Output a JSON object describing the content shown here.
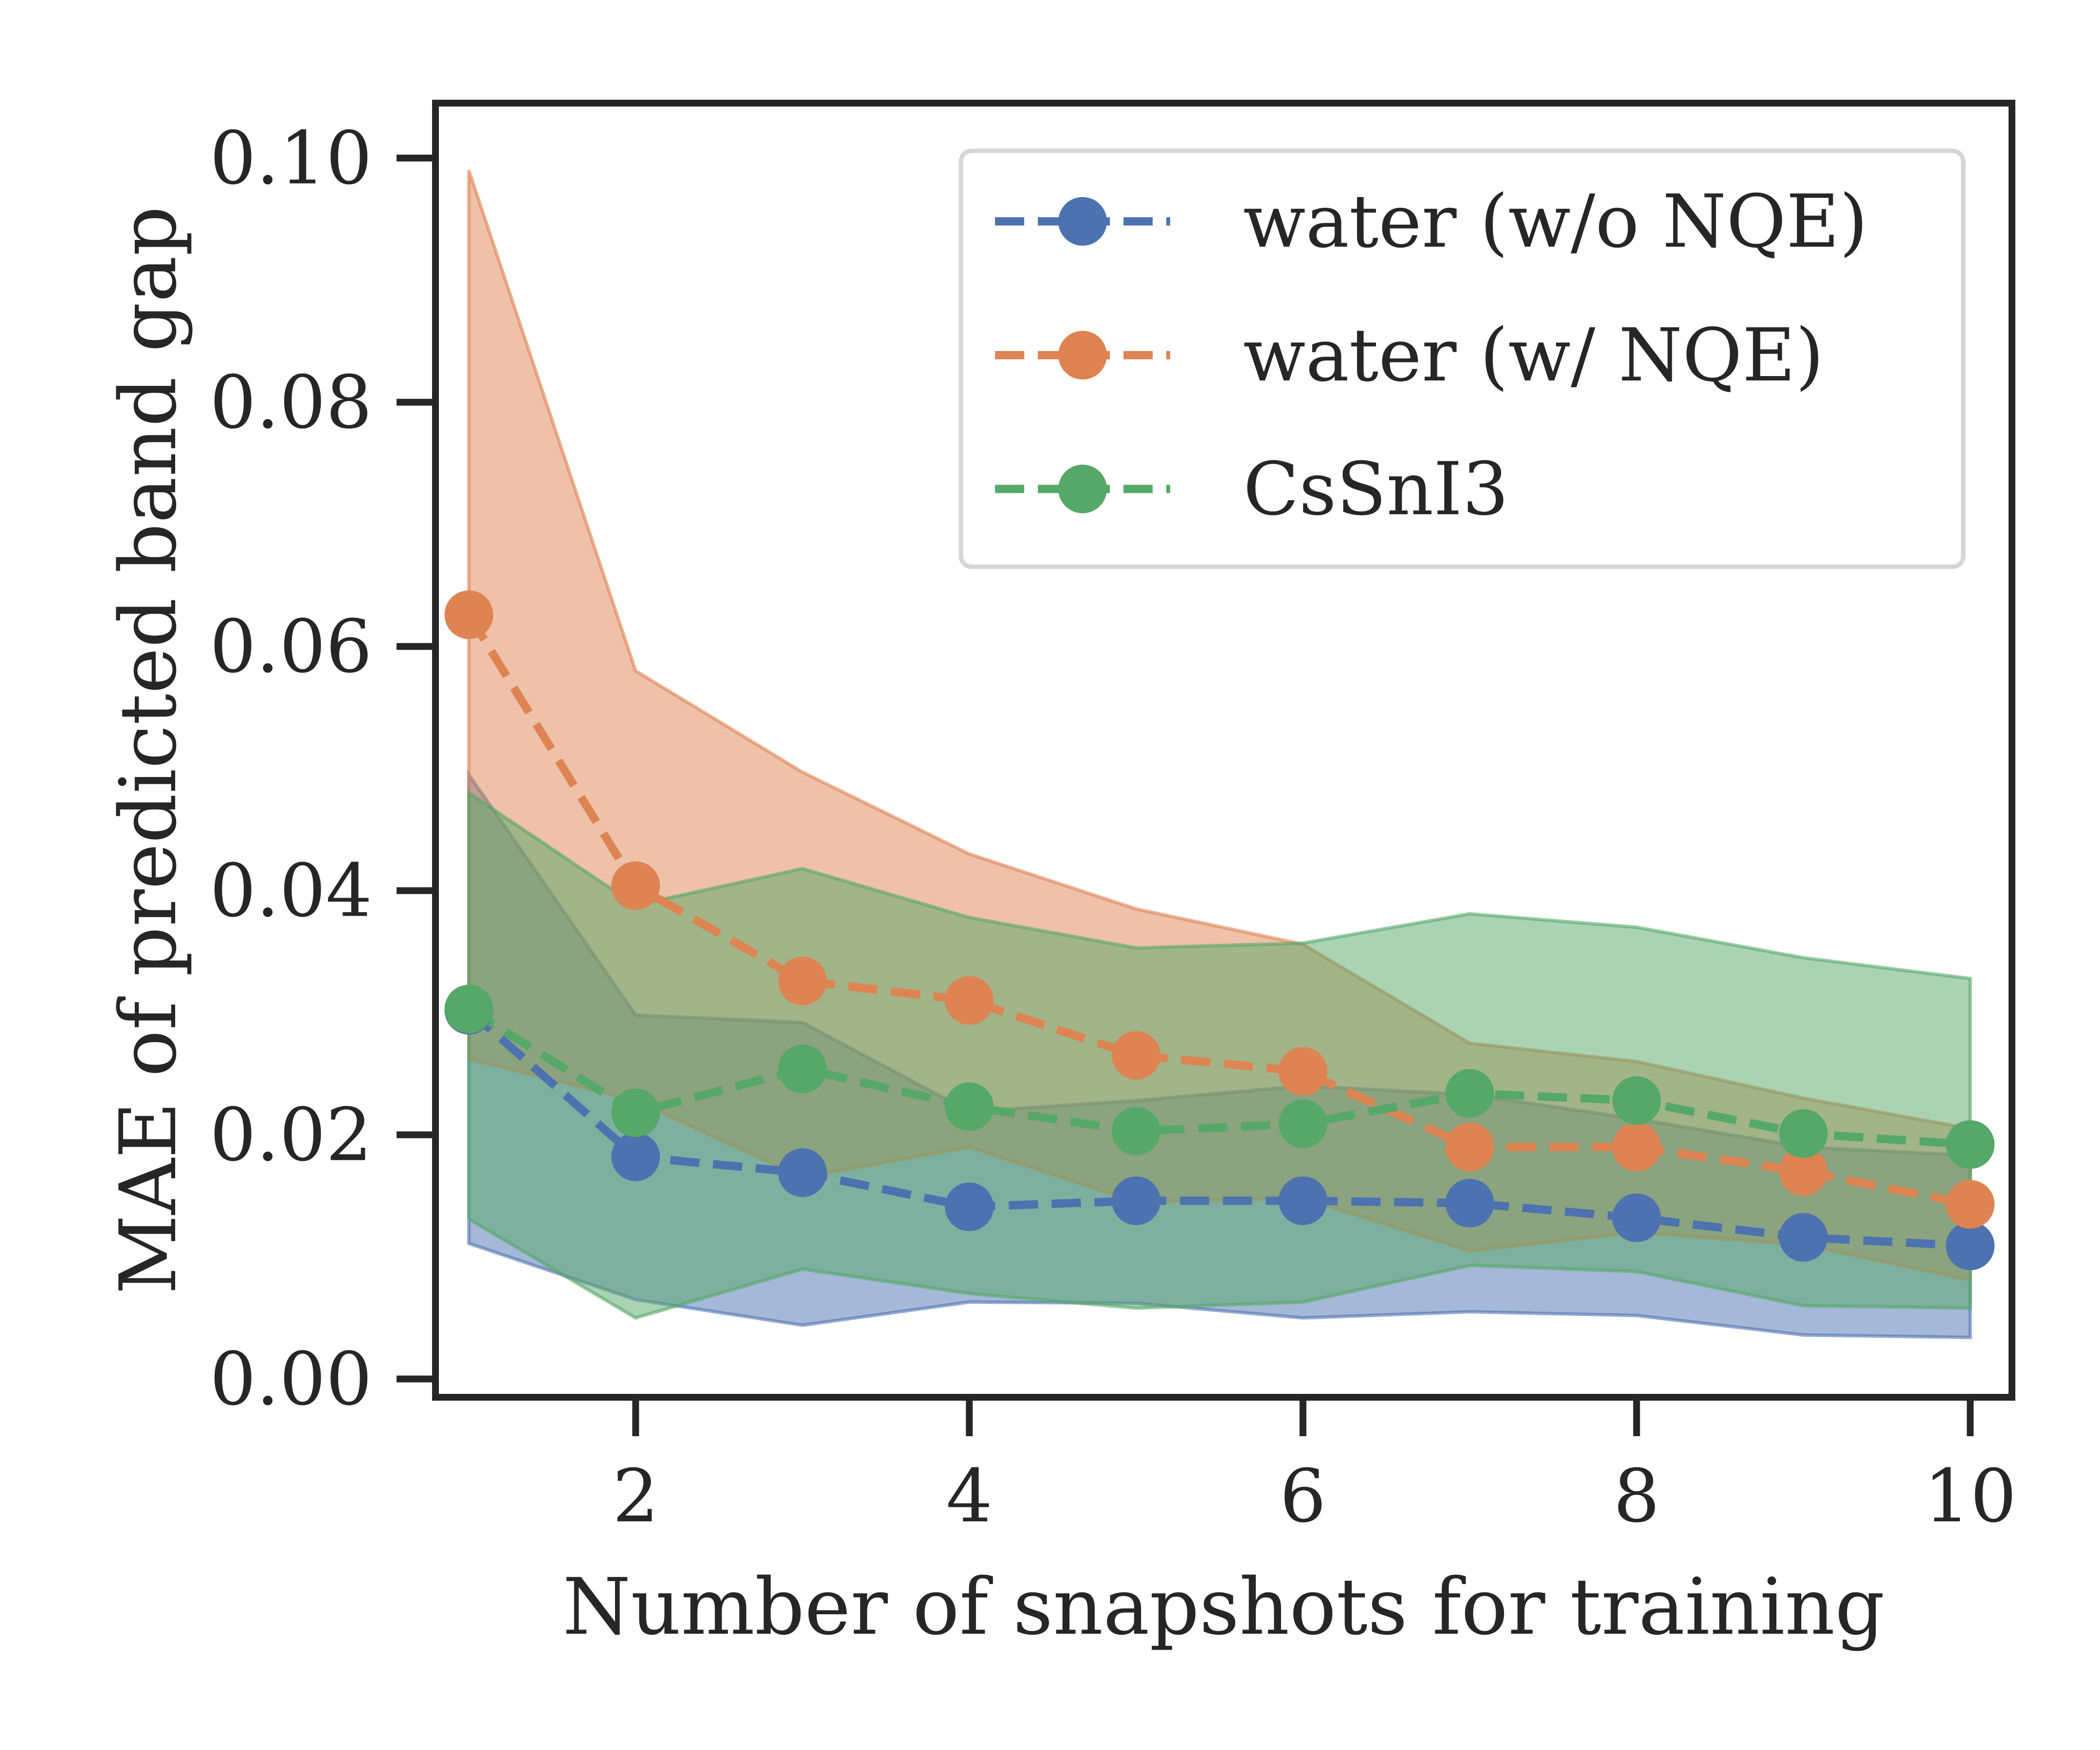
{
  "chart_data": {
    "type": "line",
    "title": "",
    "xlabel": "Number of snapshots for training",
    "ylabel": "MAE of predicted band gap",
    "xlim": [
      0.8,
      10.25
    ],
    "ylim": [
      -0.0015,
      0.1045
    ],
    "xticks": [
      2,
      4,
      6,
      8,
      10
    ],
    "xtick_labels": [
      "2",
      "4",
      "6",
      "8",
      "10"
    ],
    "yticks": [
      0.0,
      0.02,
      0.04,
      0.06,
      0.08,
      0.1
    ],
    "ytick_labels": [
      "0.00",
      "0.02",
      "0.04",
      "0.06",
      "0.08",
      "0.10"
    ],
    "grid": false,
    "legend_position": "top-right",
    "x": [
      1,
      2,
      3,
      4,
      5,
      6,
      7,
      8,
      9,
      10
    ],
    "series": [
      {
        "name": "water (w/o NQE)",
        "color": "#4c72b0",
        "values": [
          0.0302,
          0.0182,
          0.0169,
          0.0141,
          0.0146,
          0.0146,
          0.0144,
          0.0132,
          0.0116,
          0.0109
        ],
        "band_upper": [
          0.0495,
          0.0298,
          0.0292,
          0.0219,
          0.0228,
          0.024,
          0.0233,
          0.0213,
          0.019,
          0.0183
        ],
        "band_lower": [
          0.0111,
          0.0065,
          0.0044,
          0.0063,
          0.0062,
          0.005,
          0.0055,
          0.0052,
          0.0036,
          0.0034
        ]
      },
      {
        "name": "water (w/ NQE)",
        "color": "#dd8452",
        "values": [
          0.0626,
          0.0404,
          0.0326,
          0.031,
          0.0265,
          0.0252,
          0.019,
          0.019,
          0.017,
          0.0143
        ],
        "band_upper": [
          0.099,
          0.058,
          0.0497,
          0.043,
          0.0385,
          0.0356,
          0.0275,
          0.026,
          0.023,
          0.0205
        ],
        "band_lower": [
          0.0262,
          0.0228,
          0.0165,
          0.019,
          0.0145,
          0.0148,
          0.0105,
          0.012,
          0.011,
          0.0081
        ]
      },
      {
        "name": "CsSnI3",
        "color": "#55a868",
        "values": [
          0.0303,
          0.0218,
          0.0254,
          0.0223,
          0.0203,
          0.0209,
          0.0234,
          0.0228,
          0.0201,
          0.0192
        ],
        "band_upper": [
          0.048,
          0.0388,
          0.0418,
          0.0378,
          0.0353,
          0.0357,
          0.0381,
          0.037,
          0.0345,
          0.0328
        ],
        "band_lower": [
          0.0131,
          0.005,
          0.009,
          0.007,
          0.0058,
          0.0063,
          0.0093,
          0.0088,
          0.006,
          0.0058
        ]
      }
    ]
  }
}
